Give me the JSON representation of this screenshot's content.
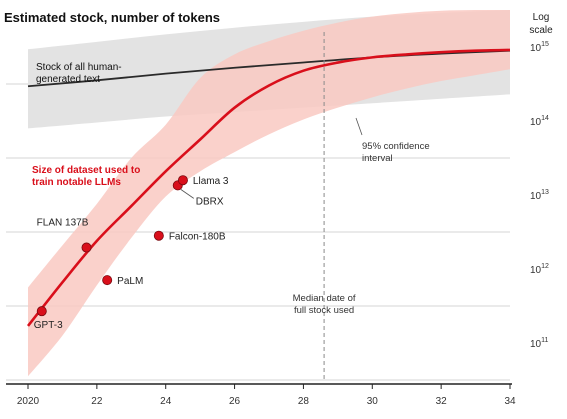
{
  "chart_data": {
    "type": "line",
    "title": "Estimated stock, number of tokens",
    "y_scale_label": [
      "Log",
      "scale"
    ],
    "y_scale": "log",
    "x_range": [
      2020,
      2034
    ],
    "y_range_exponent": [
      10.5,
      15.5
    ],
    "x_ticks": [
      2020,
      2022,
      2024,
      2026,
      2028,
      2030,
      2032,
      2034
    ],
    "x_tick_labels": [
      "2020",
      "22",
      "24",
      "26",
      "28",
      "30",
      "32",
      "34"
    ],
    "y_ticks": [
      {
        "value": 11,
        "label_base": "10",
        "label_exp": "11"
      },
      {
        "value": 12,
        "label_base": "10",
        "label_exp": "12"
      },
      {
        "value": 13,
        "label_base": "10",
        "label_exp": "13"
      },
      {
        "value": 14,
        "label_base": "10",
        "label_exp": "14"
      },
      {
        "value": 15,
        "label_base": "10",
        "label_exp": "15"
      }
    ],
    "grid": true,
    "colors": {
      "red": "#d90f1b",
      "red_band": "#f9c9c2",
      "gray_band": "#e3e3e3",
      "black_line": "#2a2a2a",
      "grid": "#d4d4d4",
      "dashed": "#8a8a8a"
    },
    "series": [
      {
        "name": "Stock of all human-generated text",
        "label_lines": [
          "Stock of all human-",
          "generated text"
        ],
        "x": [
          2020,
          2022,
          2024,
          2026,
          2028,
          2030,
          2032,
          2034
        ],
        "log10_tokens": [
          14.47,
          14.55,
          14.64,
          14.72,
          14.79,
          14.86,
          14.91,
          14.95
        ]
      },
      {
        "name": "Size of dataset used to train notable LLMs",
        "label_lines": [
          "Size of dataset used to",
          "train notable LLMs"
        ],
        "x": [
          2020,
          2021,
          2022,
          2023,
          2024,
          2025,
          2026,
          2027,
          2028,
          2029,
          2030,
          2031,
          2032,
          2033,
          2034
        ],
        "log10_tokens": [
          11.23,
          11.82,
          12.38,
          12.85,
          13.32,
          13.75,
          14.18,
          14.48,
          14.68,
          14.79,
          14.86,
          14.9,
          14.93,
          14.95,
          14.96
        ]
      }
    ],
    "bands": [
      {
        "name": "Stock of all human-generated text",
        "x": [
          2020,
          2022,
          2024,
          2026,
          2028,
          2030,
          2032,
          2034
        ],
        "low": [
          13.9,
          13.98,
          14.06,
          14.12,
          14.18,
          14.24,
          14.3,
          14.36
        ],
        "high": [
          14.97,
          15.07,
          15.17,
          15.26,
          15.34,
          15.41,
          15.46,
          15.5
        ]
      },
      {
        "name": "95% confidence interval",
        "x": [
          2020,
          2021,
          2022,
          2023,
          2024,
          2025,
          2026,
          2027,
          2028,
          2029,
          2030,
          2031,
          2032,
          2033,
          2034
        ],
        "low": [
          10.55,
          11.1,
          11.78,
          12.42,
          12.98,
          13.32,
          13.58,
          13.82,
          14.02,
          14.18,
          14.32,
          14.44,
          14.54,
          14.62,
          14.7
        ],
        "high": [
          11.75,
          12.32,
          12.88,
          13.5,
          13.95,
          14.58,
          14.9,
          15.08,
          15.22,
          15.33,
          15.41,
          15.46,
          15.49,
          15.5,
          15.5
        ]
      }
    ],
    "points": [
      {
        "label": "GPT-3",
        "x": 2020.4,
        "log10_tokens": 11.43
      },
      {
        "label": "PaLM",
        "x": 2022.3,
        "log10_tokens": 11.85
      },
      {
        "label": "FLAN 137B",
        "x": 2021.7,
        "log10_tokens": 12.29
      },
      {
        "label": "Falcon-180B",
        "x": 2023.8,
        "log10_tokens": 12.45
      },
      {
        "label": "DBRX",
        "x": 2024.35,
        "log10_tokens": 13.13
      },
      {
        "label": "Llama 3",
        "x": 2024.5,
        "log10_tokens": 13.2
      }
    ],
    "annotations": {
      "confidence_interval": [
        "95% confidence",
        "interval"
      ],
      "median_date": [
        "Median date of",
        "full stock used"
      ],
      "median_x": 2028.6
    }
  }
}
